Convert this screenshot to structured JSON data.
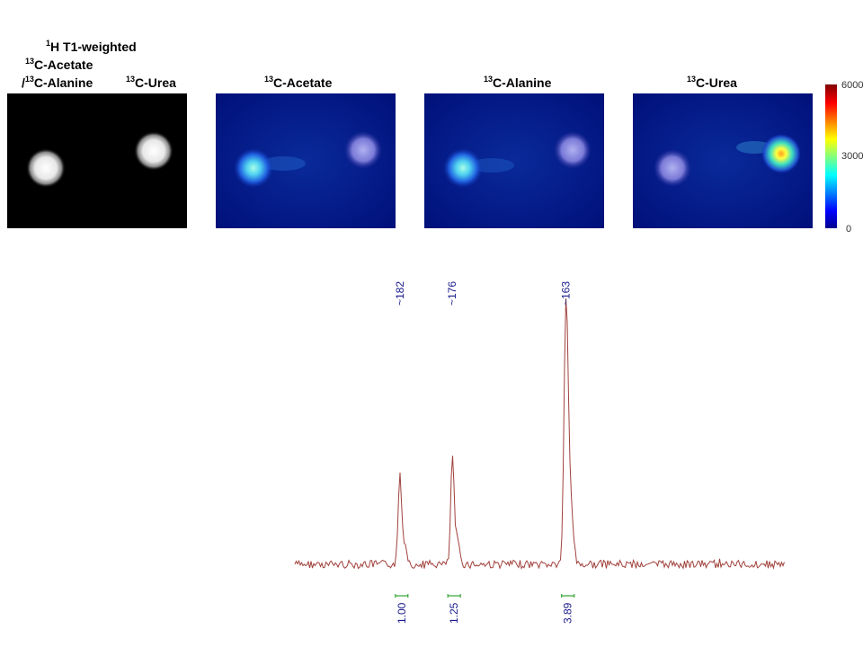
{
  "labels": {
    "proton_title_sup": "1",
    "proton_title": "H  T1-weighted",
    "acetate_alanine_line1_sup": "13",
    "acetate_alanine_line1": "C-Acetate",
    "acetate_alanine_line2_prefix": "/",
    "acetate_alanine_line2_sup": "13",
    "acetate_alanine_line2": "C-Alanine",
    "urea_left_sup": "13",
    "urea_left": "C-Urea",
    "panel_acetate_sup": "13",
    "panel_acetate": "C-Acetate",
    "panel_alanine_sup": "13",
    "panel_alanine": "C-Alanine",
    "panel_urea_sup": "13",
    "panel_urea": "C-Urea"
  },
  "colorbar": {
    "max": "6000",
    "mid": "3000",
    "min": "0"
  },
  "colors": {
    "spectrum_line": "#a0413c",
    "peak_label": "#1a1a8c",
    "integral": "#3aa83a"
  },
  "chart_data": {
    "type": "line",
    "title": "",
    "xlabel": "",
    "ylabel": "",
    "peaks": [
      {
        "ppm": 182,
        "label": "~182",
        "height": 0.34
      },
      {
        "ppm": 176,
        "label": "~176",
        "height": 0.4
      },
      {
        "ppm": 163,
        "label": "~163",
        "height": 1.0
      }
    ],
    "integrals": [
      {
        "ppm": 182,
        "value": "1.00"
      },
      {
        "ppm": 176,
        "value": "1.25"
      },
      {
        "ppm": 163,
        "value": "3.89"
      }
    ],
    "xlim": [
      194,
      138
    ]
  }
}
